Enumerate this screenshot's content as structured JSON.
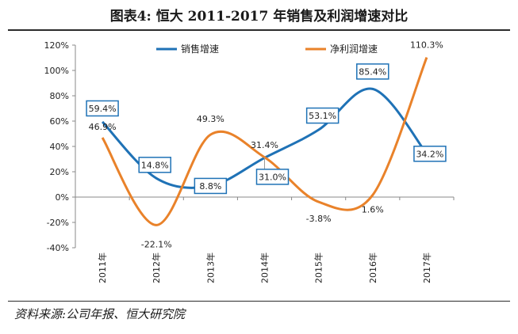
{
  "title": "图表4:  恒大 2011-2017 年销售及利润增速对比",
  "source": "资料来源:公司年报、恒大研究院",
  "chart_data": {
    "type": "line",
    "categories": [
      "2011年",
      "2012年",
      "2013年",
      "2014年",
      "2015年",
      "2016年",
      "2017年"
    ],
    "series": [
      {
        "name": "销售增速",
        "color": "#1f72b6",
        "values": [
          59.4,
          14.8,
          8.8,
          31.0,
          53.1,
          85.4,
          34.2
        ],
        "labels": [
          "59.4%",
          "14.8%",
          "8.8%",
          "31.0%",
          "53.1%",
          "85.4%",
          "34.2%"
        ]
      },
      {
        "name": "净利润增速",
        "color": "#e9822a",
        "values": [
          46.9,
          -22.1,
          49.3,
          31.4,
          -3.8,
          1.6,
          110.3
        ],
        "labels": [
          "46.9%",
          "-22.1%",
          "49.3%",
          "31.4%",
          "-3.8%",
          "1.6%",
          "110.3%"
        ]
      }
    ],
    "yticks": [
      "120%",
      "100%",
      "80%",
      "60%",
      "40%",
      "20%",
      "0%",
      "-20%",
      "-40%"
    ],
    "ylim": [
      -40,
      120
    ],
    "grid": false,
    "legend": "top",
    "smooth": true
  }
}
